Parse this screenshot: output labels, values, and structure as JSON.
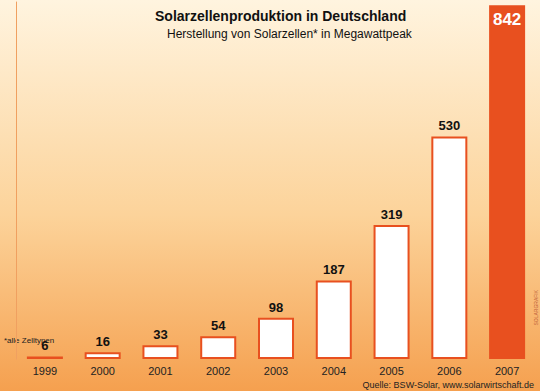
{
  "chart_data": {
    "type": "bar",
    "title": "Solarzellenproduktion in Deutschland",
    "subtitle": "Herstellung von Solarzellen* in Megawattpeak",
    "footnote": "*alle Zelltypen",
    "source": "Quelle: BSW-Solar, www.solarwirtschaft.de",
    "credit": "SOLARGRAFIK",
    "categories": [
      "1999",
      "2000",
      "2001",
      "2002",
      "2003",
      "2004",
      "2005",
      "2006",
      "2007"
    ],
    "values": [
      6,
      16,
      33,
      54,
      98,
      187,
      319,
      530,
      842
    ],
    "colors": [
      "#ffffff",
      "#ffffff",
      "#ffffff",
      "#ffffff",
      "#ffffff",
      "#ffffff",
      "#ffffff",
      "#ffffff",
      "#e8501f"
    ],
    "ylim": [
      0,
      850
    ],
    "yticks": [
      0,
      850
    ],
    "grid": false,
    "data_labels": true,
    "tick_labels": "x"
  }
}
